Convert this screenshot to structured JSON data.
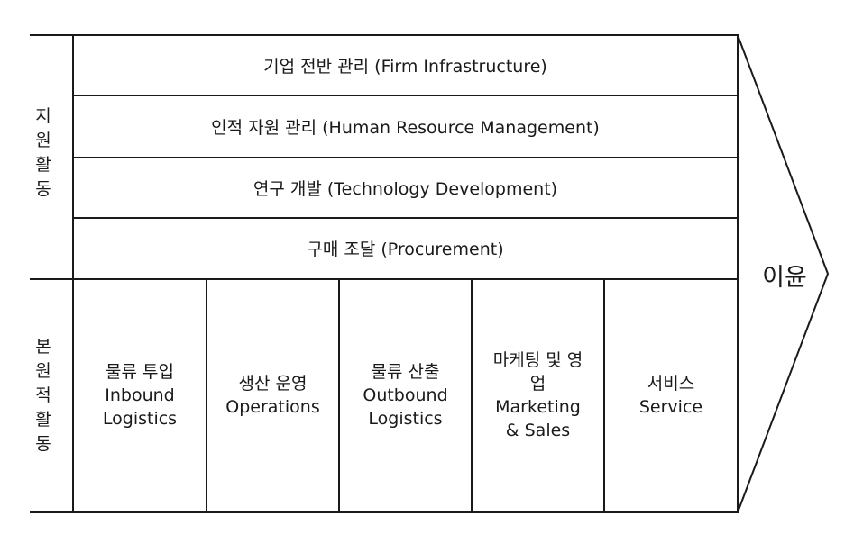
{
  "support_group_label": [
    "지",
    "원",
    "활",
    "동"
  ],
  "primary_group_label": [
    "본",
    "원",
    "적",
    "활",
    "동"
  ],
  "support_activities": [
    "기업 전반 관리 (Firm Infrastructure)",
    "인적 자원 관리 (Human Resource Management)",
    "연구 개발 (Technology Development)",
    "구매 조달 (Procurement)"
  ],
  "primary_activities": [
    {
      "ko": "물류 투입",
      "en": "Inbound\nLogistics"
    },
    {
      "ko": "생산 운영",
      "en": "Operations"
    },
    {
      "ko": "물류 산출",
      "en": "Outbound\nLogistics"
    },
    {
      "ko": "마케팅 및 영\n업",
      "en": "Marketing\n& Sales"
    },
    {
      "ko": "서비스",
      "en": "Service"
    }
  ],
  "margin_label": "이윤"
}
